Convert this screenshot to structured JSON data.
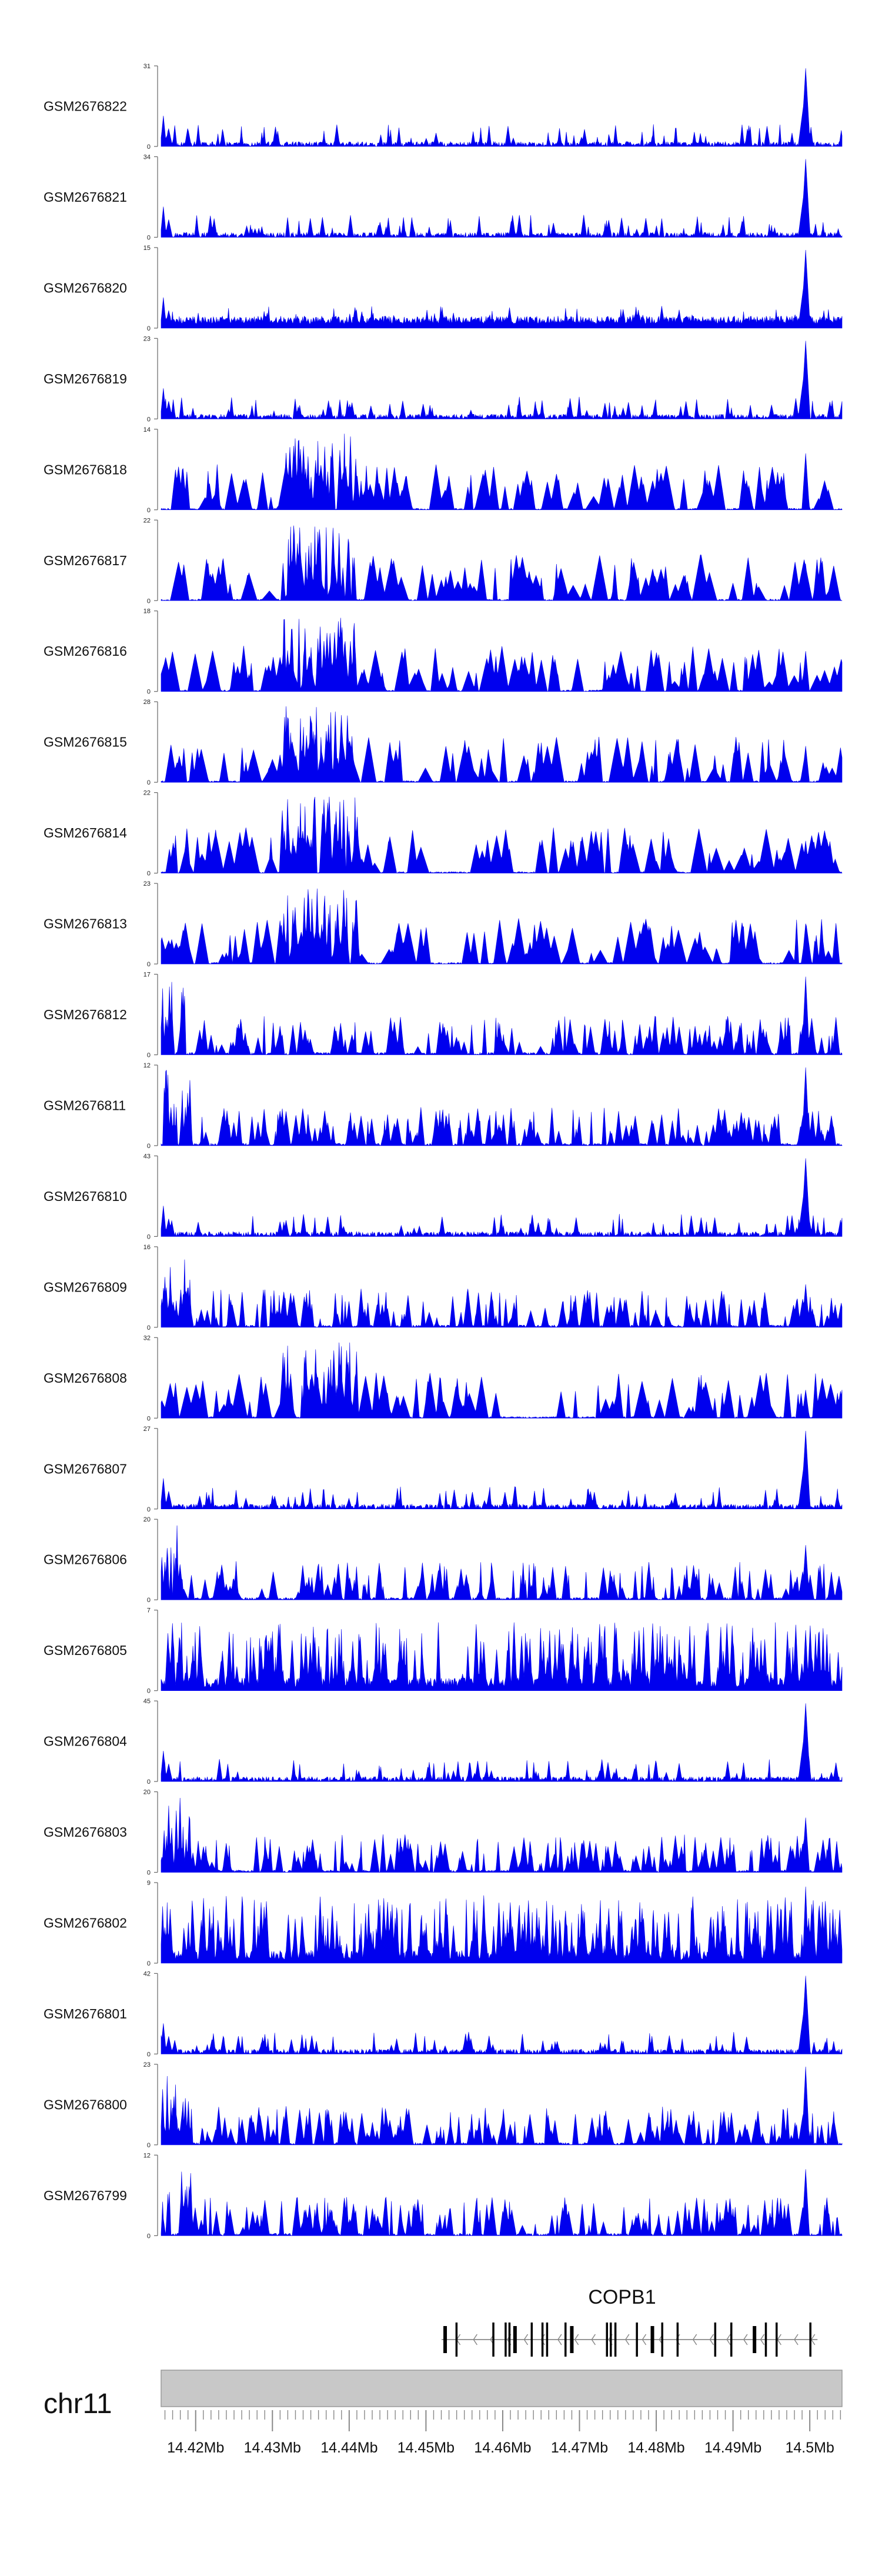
{
  "chart_data": {
    "type": "area",
    "title": "",
    "color": "#0000ee",
    "chromosome": "chr11",
    "x_axis": {
      "unit": "Mb",
      "range": [
        14.4155,
        14.5042
      ],
      "tick_values": [
        14.42,
        14.43,
        14.44,
        14.45,
        14.46,
        14.47,
        14.48,
        14.49,
        14.5
      ],
      "tick_labels": [
        "14.42Mb",
        "14.43Mb",
        "14.44Mb",
        "14.45Mb",
        "14.46Mb",
        "14.47Mb",
        "14.48Mb",
        "14.49Mb",
        "14.5Mb"
      ],
      "minor_tick_step": 0.001
    },
    "gene": {
      "name": "COPB1",
      "strand": "-",
      "start": 14.4525,
      "end": 14.5007,
      "exons": [
        14.4525,
        14.454,
        14.4588,
        14.4604,
        14.4609,
        14.4616,
        14.4638,
        14.4652,
        14.4658,
        14.4682,
        14.469,
        14.4736,
        14.4741,
        14.4747,
        14.4775,
        14.4795,
        14.4808,
        14.4828,
        14.4877,
        14.4898,
        14.4928,
        14.4943,
        14.4957,
        14.5001
      ]
    },
    "series": [
      {
        "name": "GSM2676822",
        "ylim": [
          0,
          31
        ],
        "tick_top": "31",
        "tick_bottom": "0",
        "style": "baseline",
        "peak_height": 1.0,
        "seed": 11,
        "values": []
      },
      {
        "name": "GSM2676821",
        "ylim": [
          0,
          34
        ],
        "tick_top": "34",
        "tick_bottom": "0",
        "style": "baseline",
        "peak_height": 1.0,
        "seed": 12,
        "values": []
      },
      {
        "name": "GSM2676820",
        "ylim": [
          0,
          15
        ],
        "tick_top": "15",
        "tick_bottom": "0",
        "style": "broad",
        "peak_height": 1.0,
        "seed": 13,
        "values": []
      },
      {
        "name": "GSM2676819",
        "ylim": [
          0,
          23
        ],
        "tick_top": "23",
        "tick_bottom": "0",
        "style": "baseline",
        "peak_height": 1.0,
        "seed": 14,
        "values": []
      },
      {
        "name": "GSM2676818",
        "ylim": [
          0,
          14
        ],
        "tick_top": "14",
        "tick_bottom": "0",
        "style": "spiky",
        "peak_height": 0.7,
        "seed": 15,
        "values": []
      },
      {
        "name": "GSM2676817",
        "ylim": [
          0,
          22
        ],
        "tick_top": "22",
        "tick_bottom": "0",
        "style": "spiky",
        "peak_height": 0.45,
        "seed": 16,
        "values": []
      },
      {
        "name": "GSM2676816",
        "ylim": [
          0,
          18
        ],
        "tick_top": "18",
        "tick_bottom": "0",
        "style": "spiky",
        "peak_height": 0.5,
        "seed": 17,
        "values": []
      },
      {
        "name": "GSM2676815",
        "ylim": [
          0,
          28
        ],
        "tick_top": "28",
        "tick_bottom": "0",
        "style": "spiky",
        "peak_height": 0.45,
        "seed": 18,
        "values": []
      },
      {
        "name": "GSM2676814",
        "ylim": [
          0,
          22
        ],
        "tick_top": "22",
        "tick_bottom": "0",
        "style": "spiky",
        "peak_height": 0.4,
        "seed": 19,
        "values": []
      },
      {
        "name": "GSM2676813",
        "ylim": [
          0,
          23
        ],
        "tick_top": "23",
        "tick_bottom": "0",
        "style": "spiky",
        "peak_height": 0.5,
        "seed": 20,
        "values": []
      },
      {
        "name": "GSM2676812",
        "ylim": [
          0,
          17
        ],
        "tick_top": "17",
        "tick_bottom": "0",
        "style": "mixed",
        "peak_height": 1.0,
        "seed": 21,
        "values": []
      },
      {
        "name": "GSM2676811",
        "ylim": [
          0,
          12
        ],
        "tick_top": "12",
        "tick_bottom": "0",
        "style": "mixed",
        "peak_height": 1.0,
        "seed": 22,
        "values": []
      },
      {
        "name": "GSM2676810",
        "ylim": [
          0,
          43
        ],
        "tick_top": "43",
        "tick_bottom": "0",
        "style": "baseline",
        "peak_height": 1.0,
        "seed": 23,
        "values": []
      },
      {
        "name": "GSM2676809",
        "ylim": [
          0,
          16
        ],
        "tick_top": "16",
        "tick_bottom": "0",
        "style": "mixed",
        "peak_height": 0.55,
        "seed": 24,
        "values": []
      },
      {
        "name": "GSM2676808",
        "ylim": [
          0,
          32
        ],
        "tick_top": "32",
        "tick_bottom": "0",
        "style": "spiky",
        "peak_height": 0.35,
        "seed": 25,
        "values": []
      },
      {
        "name": "GSM2676807",
        "ylim": [
          0,
          27
        ],
        "tick_top": "27",
        "tick_bottom": "0",
        "style": "baseline",
        "peak_height": 1.0,
        "seed": 26,
        "values": []
      },
      {
        "name": "GSM2676806",
        "ylim": [
          0,
          20
        ],
        "tick_top": "20",
        "tick_bottom": "0",
        "style": "mixed",
        "peak_height": 0.7,
        "seed": 27,
        "values": []
      },
      {
        "name": "GSM2676805",
        "ylim": [
          0,
          7
        ],
        "tick_top": "7",
        "tick_bottom": "0",
        "style": "dense",
        "peak_height": 0.75,
        "seed": 28,
        "values": []
      },
      {
        "name": "GSM2676804",
        "ylim": [
          0,
          45
        ],
        "tick_top": "45",
        "tick_bottom": "0",
        "style": "baseline",
        "peak_height": 1.0,
        "seed": 29,
        "values": []
      },
      {
        "name": "GSM2676803",
        "ylim": [
          0,
          20
        ],
        "tick_top": "20",
        "tick_bottom": "0",
        "style": "mixed",
        "peak_height": 0.7,
        "seed": 30,
        "values": []
      },
      {
        "name": "GSM2676802",
        "ylim": [
          0,
          9
        ],
        "tick_top": "9",
        "tick_bottom": "0",
        "style": "dense",
        "peak_height": 0.95,
        "seed": 31,
        "values": []
      },
      {
        "name": "GSM2676801",
        "ylim": [
          0,
          42
        ],
        "tick_top": "42",
        "tick_bottom": "0",
        "style": "baseline",
        "peak_height": 1.0,
        "seed": 32,
        "values": []
      },
      {
        "name": "GSM2676800",
        "ylim": [
          0,
          23
        ],
        "tick_top": "23",
        "tick_bottom": "0",
        "style": "mixed",
        "peak_height": 1.0,
        "seed": 33,
        "values": []
      },
      {
        "name": "GSM2676799",
        "ylim": [
          0,
          12
        ],
        "tick_top": "12",
        "tick_bottom": "0",
        "style": "mixed",
        "peak_height": 0.85,
        "seed": 34,
        "values": []
      }
    ]
  }
}
